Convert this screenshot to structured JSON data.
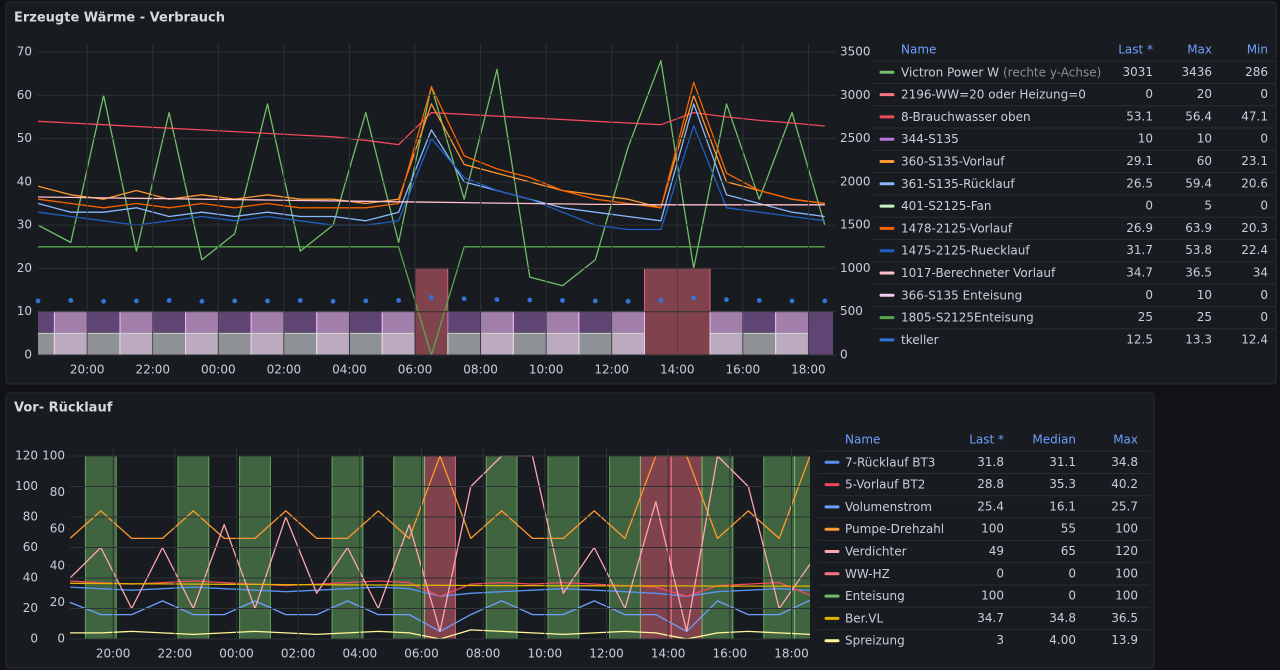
{
  "chart_data": [
    {
      "type": "line",
      "title": "Erzeugte Wärme - Verbrauch",
      "x": [
        18.5,
        19.5,
        20.5,
        21.5,
        22.5,
        23.5,
        24.5,
        25.5,
        26.5,
        27.5,
        28.5,
        29.5,
        30.5,
        31.5,
        32.5,
        33.5,
        34.5,
        35.5,
        36.5,
        37.5,
        38.5,
        39.5,
        40.5,
        41.5,
        42.5
      ],
      "xlim": [
        18.5,
        42.75
      ],
      "xticks": [
        {
          "value": 20,
          "label": "20:00"
        },
        {
          "value": 22,
          "label": "22:00"
        },
        {
          "value": 24,
          "label": "00:00"
        },
        {
          "value": 26,
          "label": "02:00"
        },
        {
          "value": 28,
          "label": "04:00"
        },
        {
          "value": 30,
          "label": "06:00"
        },
        {
          "value": 32,
          "label": "08:00"
        },
        {
          "value": 34,
          "label": "10:00"
        },
        {
          "value": 36,
          "label": "12:00"
        },
        {
          "value": 38,
          "label": "14:00"
        },
        {
          "value": 40,
          "label": "16:00"
        },
        {
          "value": 42,
          "label": "18:00"
        }
      ],
      "ylim": [
        0,
        70
      ],
      "yticks": [
        0,
        10,
        20,
        30,
        40,
        50,
        60,
        70
      ],
      "y2lim": [
        0,
        3500
      ],
      "y2ticks": [
        0,
        500,
        1000,
        1500,
        2000,
        2500,
        3000,
        3500
      ],
      "grid": true,
      "series": [
        {
          "name": "Victron Power W",
          "name_suffix": "(rechte y-Achse)",
          "color": "#73bf69",
          "axis": "y2",
          "draw": "line",
          "values": [
            1500,
            1300,
            3000,
            1200,
            2800,
            1100,
            1400,
            2900,
            1200,
            1500,
            2800,
            1300,
            3100,
            1800,
            3300,
            900,
            800,
            1100,
            2400,
            3400,
            1000,
            2900,
            1800,
            2800,
            1500
          ]
        },
        {
          "name": "2196-WW=20 oder Heizung=0",
          "color": "#ff7383",
          "draw": "area",
          "values": [
            0,
            0,
            0,
            0,
            0,
            0,
            0,
            0,
            0,
            0,
            0,
            0,
            20,
            0,
            0,
            0,
            0,
            0,
            0,
            20,
            20,
            0,
            0,
            0,
            0
          ]
        },
        {
          "name": "8-Brauchwasser oben",
          "color": "#f2495c",
          "draw": "line",
          "values": [
            54,
            53.6,
            53.2,
            52.8,
            52.4,
            52,
            51.6,
            51.2,
            50.8,
            50.4,
            49.6,
            48.6,
            56,
            55.6,
            55.2,
            54.8,
            54.4,
            54,
            53.6,
            53.2,
            56,
            55,
            54.2,
            53.6,
            52.9
          ]
        },
        {
          "name": "344-S135",
          "color": "#b877d9",
          "draw": "area",
          "values": [
            10,
            10,
            10,
            10,
            10,
            10,
            10,
            10,
            10,
            10,
            10,
            10,
            0,
            10,
            10,
            10,
            10,
            10,
            10,
            0,
            0,
            10,
            10,
            10,
            10
          ]
        },
        {
          "name": "360-S135-Vorlauf",
          "color": "#ff9830",
          "draw": "line",
          "values": [
            39,
            37,
            36,
            38,
            36,
            37,
            36,
            37,
            36,
            36,
            35,
            36,
            58,
            44,
            42,
            40,
            38,
            37,
            36,
            34,
            60,
            40,
            38,
            36,
            35
          ]
        },
        {
          "name": "361-S135-Rücklauf",
          "color": "#8ab8ff",
          "draw": "line",
          "values": [
            35,
            33,
            33,
            34,
            32,
            33,
            32,
            33,
            32,
            32,
            31,
            33,
            52,
            40,
            38,
            36,
            34,
            33,
            32,
            31,
            58,
            37,
            35,
            33,
            32
          ]
        },
        {
          "name": "401-S2125-Fan",
          "color": "#c8f2c2",
          "draw": "area",
          "values": [
            5,
            5,
            5,
            5,
            5,
            5,
            5,
            5,
            5,
            5,
            5,
            5,
            0,
            5,
            5,
            5,
            5,
            5,
            5,
            0,
            0,
            5,
            5,
            5,
            0
          ]
        },
        {
          "name": "1478-2125-Vorlauf",
          "color": "#fa6400",
          "draw": "line",
          "values": [
            36,
            35,
            34,
            35,
            34,
            35,
            34,
            35,
            34,
            34,
            34,
            35,
            62,
            46,
            43,
            41,
            38,
            36,
            35,
            34,
            63,
            42,
            38,
            36,
            35
          ]
        },
        {
          "name": "1475-2125-Ruecklauf",
          "color": "#1f60c4",
          "draw": "line",
          "values": [
            33,
            32,
            31,
            30,
            31,
            32,
            31,
            32,
            31,
            30,
            30,
            31,
            50,
            41,
            38,
            36,
            33,
            30,
            29,
            29,
            53,
            34,
            33,
            32,
            31
          ]
        },
        {
          "name": "1017-Berechneter Vorlauf",
          "color": "#ffc2cb",
          "draw": "line",
          "values": [
            36.5,
            36.4,
            36.3,
            36.2,
            36.1,
            36,
            35.9,
            35.8,
            35.7,
            35.6,
            35.5,
            35.4,
            35.3,
            35.2,
            35.1,
            35,
            34.9,
            34.8,
            34.8,
            34.7,
            34.7,
            34.7,
            34.7,
            34.7,
            34.7
          ]
        },
        {
          "name": "366-S135 Enteisung",
          "color": "#f4c8f0",
          "draw": "area",
          "values": [
            0,
            10,
            0,
            10,
            0,
            10,
            0,
            10,
            0,
            10,
            0,
            10,
            0,
            0,
            10,
            0,
            10,
            0,
            10,
            0,
            0,
            10,
            0,
            10,
            0
          ]
        },
        {
          "name": "1805-S2125Enteisung",
          "color": "#56a64b",
          "draw": "line",
          "values": [
            25,
            25,
            25,
            25,
            25,
            25,
            25,
            25,
            25,
            25,
            25,
            25,
            0,
            25,
            25,
            25,
            25,
            25,
            25,
            25,
            25,
            25,
            25,
            25,
            25
          ]
        },
        {
          "name": "tkeller",
          "color": "#3274d9",
          "draw": "points",
          "values": [
            12.5,
            12.6,
            12.4,
            12.5,
            12.6,
            12.4,
            12.5,
            12.5,
            12.6,
            12.4,
            12.5,
            12.6,
            13.3,
            13,
            12.8,
            12.7,
            12.6,
            12.5,
            12.4,
            12.6,
            13.2,
            12.8,
            12.6,
            12.5,
            12.5
          ]
        }
      ],
      "legend": {
        "columns": [
          "Name",
          "Last *",
          "Max",
          "Min"
        ],
        "rows": [
          [
            3031,
            3436,
            286
          ],
          [
            0,
            20,
            0
          ],
          [
            53.1,
            56.4,
            47.1
          ],
          [
            10,
            10,
            0
          ],
          [
            29.1,
            60,
            23.1
          ],
          [
            26.5,
            59.4,
            20.6
          ],
          [
            0,
            5,
            0
          ],
          [
            26.9,
            63.9,
            20.3
          ],
          [
            31.7,
            53.8,
            22.4
          ],
          [
            34.7,
            36.5,
            34
          ],
          [
            0,
            10,
            0
          ],
          [
            25,
            25,
            0
          ],
          [
            12.5,
            13.3,
            12.4
          ]
        ]
      }
    },
    {
      "type": "line",
      "title": "Vor- Rücklauf",
      "x": [
        18.6,
        19.6,
        20.6,
        21.6,
        22.6,
        23.6,
        24.6,
        25.6,
        26.6,
        27.6,
        28.6,
        29.6,
        30.6,
        31.6,
        32.6,
        33.6,
        34.6,
        35.6,
        36.6,
        37.6,
        38.6,
        39.6,
        40.6,
        41.6,
        42.6
      ],
      "xlim": [
        18.6,
        42.6
      ],
      "xticks": [
        {
          "value": 20,
          "label": "20:00"
        },
        {
          "value": 22,
          "label": "22:00"
        },
        {
          "value": 24,
          "label": "00:00"
        },
        {
          "value": 26,
          "label": "02:00"
        },
        {
          "value": 28,
          "label": "04:00"
        },
        {
          "value": 30,
          "label": "06:00"
        },
        {
          "value": 32,
          "label": "08:00"
        },
        {
          "value": 34,
          "label": "10:00"
        },
        {
          "value": 36,
          "label": "12:00"
        },
        {
          "value": 38,
          "label": "14:00"
        },
        {
          "value": 40,
          "label": "16:00"
        },
        {
          "value": 42,
          "label": "18:00"
        }
      ],
      "ylim": [
        0,
        120
      ],
      "yticks": [
        0,
        20,
        40,
        60,
        80,
        100,
        120
      ],
      "y2lim": [
        0,
        100
      ],
      "y2ticks": [
        0,
        20,
        40,
        60,
        80,
        100
      ],
      "grid": true,
      "series": [
        {
          "name": "7-Rücklauf BT3",
          "color": "#5794f2",
          "draw": "line",
          "values": [
            34,
            33,
            32,
            33,
            34,
            33,
            32,
            31,
            32,
            33,
            34,
            33,
            28,
            30,
            31,
            32,
            33,
            32,
            31,
            30,
            28,
            31,
            32,
            33,
            31.8
          ]
        },
        {
          "name": "5-Vorlauf BT2",
          "color": "#f2495c",
          "draw": "line",
          "values": [
            38,
            37,
            36,
            37,
            38,
            37,
            36,
            35,
            36,
            37,
            38,
            37,
            28,
            36,
            37,
            36,
            37,
            36,
            35,
            34,
            28,
            35,
            36,
            37,
            28.8
          ]
        },
        {
          "name": "Volumenstrom",
          "color": "#6e9fff",
          "draw": "line",
          "values": [
            24,
            16,
            16,
            25,
            16,
            16,
            25,
            16,
            16,
            25,
            16,
            16,
            5,
            16,
            25,
            16,
            16,
            25,
            16,
            16,
            5,
            25,
            16,
            16,
            25.4
          ]
        },
        {
          "name": "Pumpe-Drehzahl",
          "color": "#ff9830",
          "axis": "y2",
          "draw": "line",
          "values": [
            55,
            70,
            55,
            55,
            70,
            55,
            55,
            70,
            55,
            55,
            70,
            55,
            100,
            55,
            70,
            55,
            55,
            70,
            55,
            100,
            100,
            55,
            70,
            55,
            100
          ]
        },
        {
          "name": "Verdichter",
          "color": "#ffa6b0",
          "draw": "line",
          "values": [
            40,
            60,
            20,
            60,
            20,
            75,
            20,
            80,
            30,
            60,
            20,
            75,
            5,
            100,
            120,
            120,
            30,
            60,
            20,
            90,
            5,
            120,
            100,
            20,
            49
          ]
        },
        {
          "name": "WW-HZ",
          "color": "#ff7383",
          "axis": "y2",
          "draw": "area",
          "values": [
            0,
            0,
            0,
            0,
            0,
            0,
            0,
            0,
            0,
            0,
            0,
            0,
            100,
            0,
            0,
            0,
            0,
            0,
            0,
            100,
            100,
            0,
            0,
            0,
            0
          ]
        },
        {
          "name": "Enteisung",
          "color": "#73bf69",
          "axis": "y2",
          "draw": "area",
          "values": [
            0,
            100,
            0,
            0,
            100,
            0,
            100,
            0,
            0,
            100,
            0,
            100,
            0,
            0,
            100,
            0,
            100,
            0,
            100,
            0,
            0,
            100,
            0,
            100,
            100
          ]
        },
        {
          "name": "Ber.VL",
          "color": "#e0b400",
          "draw": "line",
          "values": [
            36.5,
            36.4,
            36.2,
            36.1,
            36,
            35.9,
            35.8,
            35.7,
            35.6,
            35.5,
            35.4,
            35.3,
            35.2,
            35.1,
            35,
            35,
            34.9,
            34.9,
            34.8,
            34.8,
            34.8,
            34.7,
            34.7,
            34.7,
            34.7
          ]
        },
        {
          "name": "Spreizung",
          "color": "#fff899",
          "draw": "line",
          "values": [
            4,
            4,
            5,
            4,
            3,
            4,
            5,
            4,
            3,
            4,
            5,
            4,
            0,
            6,
            5,
            4,
            3,
            4,
            5,
            4,
            0,
            4,
            5,
            4,
            3
          ]
        }
      ],
      "legend": {
        "columns": [
          "Name",
          "Last *",
          "Median",
          "Max"
        ],
        "rows": [
          [
            31.8,
            31.1,
            34.8
          ],
          [
            28.8,
            35.3,
            40.2
          ],
          [
            25.4,
            16.1,
            25.7
          ],
          [
            100,
            55,
            100
          ],
          [
            49,
            65,
            120
          ],
          [
            0,
            0,
            100
          ],
          [
            100,
            0,
            100
          ],
          [
            34.7,
            34.8,
            36.5
          ],
          [
            3,
            "4.00",
            13.9
          ]
        ]
      }
    }
  ]
}
